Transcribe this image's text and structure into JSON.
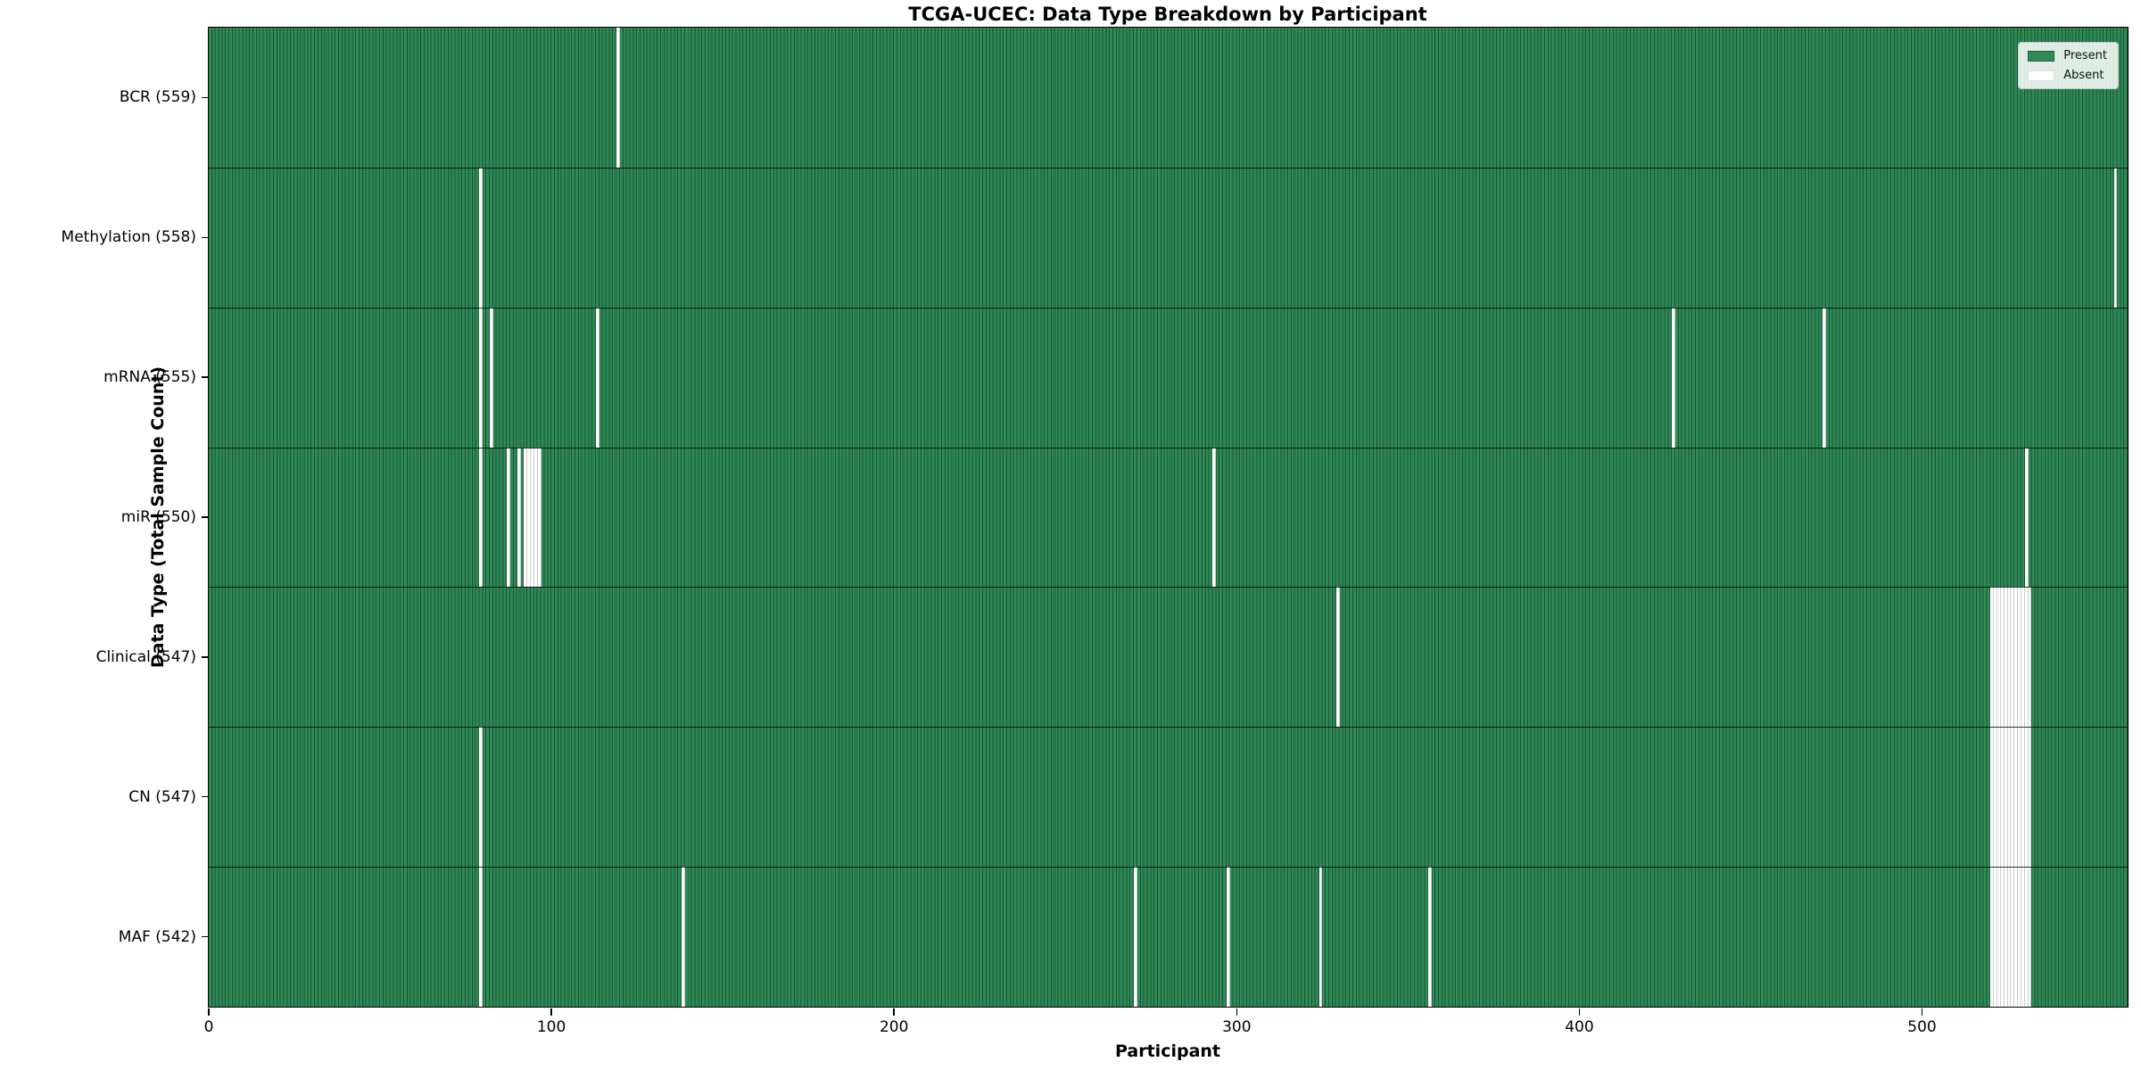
{
  "title": "TCGA-UCEC: Data Type Breakdown by Participant",
  "colors": {
    "present": "#2e8b57",
    "present_edge": "#1a5031",
    "absent": "#ffffff",
    "row_separator": "#000000"
  },
  "legend_entries": [
    {
      "label": "Present",
      "color": "#2e8b57"
    },
    {
      "label": "Absent",
      "color": "#ffffff"
    }
  ],
  "chart_data": {
    "type": "heatmap",
    "title": "TCGA-UCEC: Data Type Breakdown by Participant",
    "xlabel": "Participant",
    "ylabel": "Data Type (Total Sample Count)",
    "legend": [
      "Present",
      "Absent"
    ],
    "legend_position": "upper right",
    "grid": false,
    "n_participants": 560,
    "x_ticks": [
      0,
      100,
      200,
      300,
      400,
      500
    ],
    "xlim": [
      0,
      560
    ],
    "rows": [
      {
        "data_type": "BCR",
        "label": "BCR (559)",
        "present_count": 559,
        "absent_count": 1,
        "absent_participants": [
          119
        ]
      },
      {
        "data_type": "Methylation",
        "label": "Methylation (558)",
        "present_count": 558,
        "absent_count": 2,
        "absent_participants": [
          79,
          556
        ]
      },
      {
        "data_type": "mRNA",
        "label": "mRNA (555)",
        "present_count": 555,
        "absent_count": 5,
        "absent_participants": [
          79,
          82,
          113,
          427,
          471
        ]
      },
      {
        "data_type": "miR",
        "label": "miR (550)",
        "present_count": 550,
        "absent_count": 10,
        "absent_participants": [
          79,
          87,
          90,
          92,
          93,
          94,
          95,
          96,
          293,
          530
        ]
      },
      {
        "data_type": "Clinical",
        "label": "Clinical (547)",
        "present_count": 547,
        "absent_count": 13,
        "absent_participants": [
          329,
          520,
          521,
          522,
          523,
          524,
          525,
          526,
          527,
          528,
          529,
          530,
          531
        ]
      },
      {
        "data_type": "CN",
        "label": "CN (547)",
        "present_count": 547,
        "absent_count": 13,
        "absent_participants": [
          79,
          520,
          521,
          522,
          523,
          524,
          525,
          526,
          527,
          528,
          529,
          530,
          531
        ]
      },
      {
        "data_type": "MAF",
        "label": "MAF (542)",
        "present_count": 542,
        "absent_count": 18,
        "absent_participants": [
          79,
          138,
          270,
          297,
          324,
          356,
          520,
          521,
          522,
          523,
          524,
          525,
          526,
          527,
          528,
          529,
          530,
          531
        ]
      }
    ]
  }
}
